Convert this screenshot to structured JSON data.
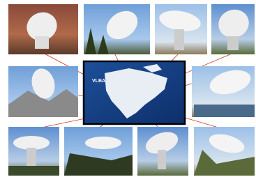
{
  "map": {
    "label": "VLBA"
  }
}
